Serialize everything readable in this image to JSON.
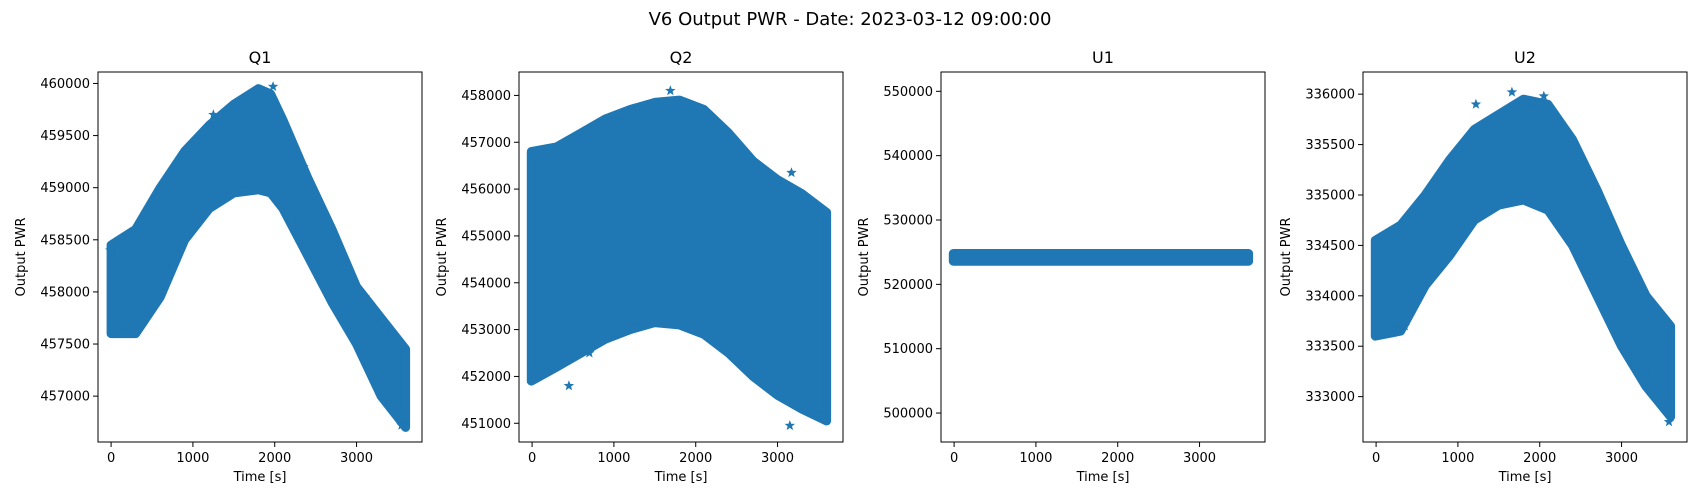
{
  "figure": {
    "title": "V6 Output PWR - Date: 2023-03-12 09:00:00",
    "marker_color": "#1f77b4"
  },
  "chart_data": [
    {
      "type": "scatter",
      "title": "Q1",
      "xlabel": "Time [s]",
      "ylabel": "Output PWR",
      "xlim": [
        -160,
        3800
      ],
      "ylim": [
        456560,
        460110
      ],
      "xticks": [
        0,
        1000,
        2000,
        3000
      ],
      "xtick_labels": [
        "0",
        "1000",
        "2000",
        "3000"
      ],
      "yticks": [
        457000,
        457500,
        458000,
        458500,
        459000,
        459500,
        460000
      ],
      "ytick_labels": [
        "457000",
        "457500",
        "458000",
        "458500",
        "459000",
        "459500",
        "460000"
      ],
      "grid": false,
      "marker": "star",
      "band": {
        "x": [
          0,
          300,
          600,
          900,
          1200,
          1500,
          1800,
          1950,
          2100,
          2400,
          2700,
          3000,
          3300,
          3600
        ],
        "lower": [
          457600,
          457600,
          457950,
          458500,
          458800,
          458950,
          458980,
          458950,
          458800,
          458350,
          457900,
          457500,
          457000,
          456700
        ],
        "upper": [
          458450,
          458600,
          459000,
          459350,
          459600,
          459800,
          459950,
          459900,
          459650,
          459100,
          458600,
          458050,
          457750,
          457450
        ]
      },
      "outliers": [
        [
          -10,
          458400
        ],
        [
          1250,
          459700
        ],
        [
          1980,
          459970
        ],
        [
          2350,
          459200
        ],
        [
          3350,
          457650
        ],
        [
          3550,
          456720
        ],
        [
          3100,
          457950
        ]
      ]
    },
    {
      "type": "scatter",
      "title": "Q2",
      "xlabel": "Time [s]",
      "ylabel": "Output PWR",
      "xlim": [
        -160,
        3800
      ],
      "ylim": [
        450600,
        458500
      ],
      "xticks": [
        0,
        1000,
        2000,
        3000
      ],
      "xtick_labels": [
        "0",
        "1000",
        "2000",
        "3000"
      ],
      "yticks": [
        451000,
        452000,
        453000,
        454000,
        455000,
        456000,
        457000,
        458000
      ],
      "ytick_labels": [
        "451000",
        "452000",
        "453000",
        "454000",
        "455000",
        "456000",
        "457000",
        "458000"
      ],
      "grid": false,
      "marker": "star",
      "band": {
        "x": [
          -10,
          300,
          600,
          900,
          1200,
          1500,
          1800,
          2100,
          2400,
          2700,
          3000,
          3300,
          3600
        ],
        "lower": [
          451900,
          452200,
          452500,
          452800,
          453000,
          453150,
          453100,
          452900,
          452500,
          452000,
          451600,
          451300,
          451050
        ],
        "upper": [
          456800,
          456900,
          457200,
          457500,
          457700,
          457850,
          457900,
          457700,
          457200,
          456600,
          456200,
          455900,
          455500
        ]
      },
      "outliers": [
        [
          1690,
          458100
        ],
        [
          3170,
          456350
        ],
        [
          3150,
          450950
        ],
        [
          450,
          451800
        ],
        [
          700,
          452500
        ]
      ]
    },
    {
      "type": "scatter",
      "title": "U1",
      "xlabel": "Time [s]",
      "ylabel": "Output PWR",
      "xlim": [
        -160,
        3800
      ],
      "ylim": [
        495500,
        553000
      ],
      "xticks": [
        0,
        1000,
        2000,
        3000
      ],
      "xtick_labels": [
        "0",
        "1000",
        "2000",
        "3000"
      ],
      "yticks": [
        500000,
        510000,
        520000,
        530000,
        540000,
        550000
      ],
      "ytick_labels": [
        "500000",
        "510000",
        "520000",
        "530000",
        "540000",
        "550000"
      ],
      "grid": false,
      "marker": "star",
      "band": {
        "x": [
          -10,
          3600
        ],
        "lower": [
          523600,
          523600
        ],
        "upper": [
          524800,
          524800
        ]
      },
      "outliers": []
    },
    {
      "type": "scatter",
      "title": "U2",
      "xlabel": "Time [s]",
      "ylabel": "Output PWR",
      "xlim": [
        -160,
        3800
      ],
      "ylim": [
        332550,
        336220
      ],
      "xticks": [
        0,
        1000,
        2000,
        3000
      ],
      "xtick_labels": [
        "0",
        "1000",
        "2000",
        "3000"
      ],
      "yticks": [
        333000,
        333500,
        334000,
        334500,
        335000,
        335500,
        336000
      ],
      "ytick_labels": [
        "333000",
        "333500",
        "334000",
        "334500",
        "335000",
        "335500",
        "336000"
      ],
      "grid": false,
      "marker": "star",
      "band": {
        "x": [
          -10,
          300,
          600,
          900,
          1200,
          1500,
          1800,
          2100,
          2400,
          2700,
          3000,
          3300,
          3600
        ],
        "lower": [
          333600,
          333650,
          334100,
          334400,
          334750,
          334900,
          334950,
          334850,
          334500,
          334000,
          333500,
          333100,
          332800
        ],
        "upper": [
          334550,
          334700,
          335000,
          335350,
          335650,
          335800,
          335950,
          335900,
          335550,
          335050,
          334500,
          334000,
          333700
        ]
      },
      "outliers": [
        [
          1220,
          335900
        ],
        [
          1660,
          336020
        ],
        [
          2050,
          335980
        ],
        [
          3320,
          333250
        ],
        [
          3580,
          332750
        ],
        [
          350,
          333700
        ]
      ]
    }
  ]
}
